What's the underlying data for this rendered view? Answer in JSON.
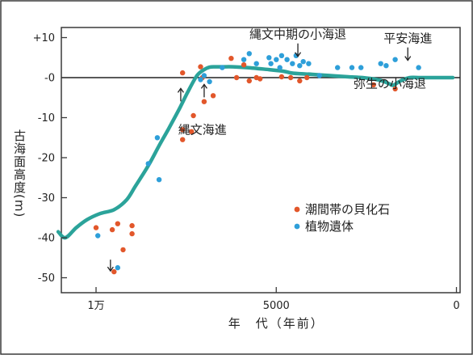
{
  "chart_data": {
    "type": "scatter",
    "title": "",
    "xlabel": "年　代（年前）",
    "ylabel": "古海面高度(m)",
    "xlim": [
      11500,
      0
    ],
    "ylim": [
      -55,
      14
    ],
    "xticks": [
      {
        "value": 10000,
        "label": "1万"
      },
      {
        "value": 5000,
        "label": "5000"
      },
      {
        "value": 0,
        "label": "0"
      }
    ],
    "yticks": [
      {
        "value": 10,
        "label": "+10"
      },
      {
        "value": 0,
        "label": "-0"
      },
      {
        "value": -10,
        "label": "-10"
      },
      {
        "value": -20,
        "label": "-20"
      },
      {
        "value": -30,
        "label": "-30"
      },
      {
        "value": -40,
        "label": "-40"
      },
      {
        "value": -50,
        "label": "-50"
      }
    ],
    "reference_line": {
      "y": 0
    },
    "colors": {
      "curve": "#2ba39a",
      "shell": "#e2572b",
      "plant": "#2e9fd9",
      "frame": "#3a3a3a",
      "zero_line": "#222222"
    },
    "curve": {
      "x": [
        11050,
        10850,
        10550,
        10250,
        9900,
        9500,
        9150,
        8900,
        8550,
        8250,
        8000,
        7700,
        7450,
        7200,
        7000,
        6850,
        6700,
        6500,
        6200,
        5800,
        5200,
        4800,
        4600,
        4400,
        4000,
        3500,
        3000,
        2600,
        2200,
        2000,
        1850,
        1750,
        1550,
        1300,
        1000,
        600,
        100
      ],
      "y": [
        -38.5,
        -40,
        -37.5,
        -35.5,
        -34,
        -33,
        -30.5,
        -27,
        -22,
        -17,
        -13,
        -8,
        -3.5,
        0.5,
        2,
        2.6,
        2.7,
        2.7,
        2.7,
        2.5,
        2,
        1.6,
        1.2,
        1,
        0.8,
        0.5,
        0.2,
        0,
        -0.5,
        -1,
        -1.6,
        -1.9,
        -0.8,
        0,
        0,
        0,
        0
      ]
    },
    "series": [
      {
        "name": "潮間帯の貝化石",
        "marker": "shell",
        "points": [
          [
            10000,
            -37.5
          ],
          [
            9550,
            -38
          ],
          [
            9400,
            -36.5
          ],
          [
            9250,
            -43
          ],
          [
            9000,
            -37
          ],
          [
            9000,
            -39
          ],
          [
            9500,
            -48.5
          ],
          [
            7600,
            1.2
          ],
          [
            7600,
            -13
          ],
          [
            7600,
            -15.5
          ],
          [
            7350,
            -13.5
          ],
          [
            7300,
            -9.5
          ],
          [
            7100,
            2.7
          ],
          [
            7050,
            0
          ],
          [
            7000,
            -6
          ],
          [
            6750,
            -4.5
          ],
          [
            6250,
            4.8
          ],
          [
            6100,
            0
          ],
          [
            5900,
            3.2
          ],
          [
            5750,
            -0.8
          ],
          [
            5550,
            0
          ],
          [
            5450,
            -0.3
          ],
          [
            4850,
            0.2
          ],
          [
            4600,
            0
          ],
          [
            4350,
            -0.8
          ],
          [
            4150,
            0
          ],
          [
            2300,
            -1.8
          ],
          [
            1700,
            -2.8
          ]
        ]
      },
      {
        "name": "植物遺体",
        "marker": "plant",
        "points": [
          [
            9950,
            -39.5
          ],
          [
            9400,
            -47.5
          ],
          [
            8550,
            -21.5
          ],
          [
            8300,
            -15
          ],
          [
            8250,
            -25.5
          ],
          [
            7100,
            -0.5
          ],
          [
            7000,
            0.5
          ],
          [
            6850,
            -1
          ],
          [
            6500,
            2.5
          ],
          [
            5900,
            4.5
          ],
          [
            5750,
            6
          ],
          [
            5550,
            3.5
          ],
          [
            5200,
            5
          ],
          [
            5150,
            3.5
          ],
          [
            5000,
            4.5
          ],
          [
            4900,
            2.5
          ],
          [
            4850,
            5.5
          ],
          [
            4700,
            4.5
          ],
          [
            4550,
            3.5
          ],
          [
            4450,
            5.5
          ],
          [
            4350,
            3
          ],
          [
            4250,
            4
          ],
          [
            4100,
            3.5
          ],
          [
            3800,
            0.5
          ],
          [
            3300,
            2.5
          ],
          [
            2900,
            2.5
          ],
          [
            2650,
            2.5
          ],
          [
            2100,
            3.5
          ],
          [
            1950,
            3
          ],
          [
            1700,
            4.5
          ],
          [
            1050,
            2.5
          ]
        ]
      }
    ],
    "annotations": [
      {
        "text": "縄文中期の小海退",
        "x": 4400,
        "y": 4.5,
        "arrow": true
      },
      {
        "text": "平安海進",
        "x": 1350,
        "y": 3.5,
        "arrow": true
      },
      {
        "text": "弥生の小海退",
        "x": 1850,
        "y": -2.5,
        "arrow": false
      },
      {
        "text": "縄文海進",
        "x": 7050,
        "y": -14,
        "arrow": false
      },
      {
        "text": "",
        "x": 7650,
        "y": -3.5,
        "arrow": true,
        "direction": "up"
      },
      {
        "text": "",
        "x": 7000,
        "y": -2.5,
        "arrow": true,
        "direction": "up"
      },
      {
        "text": "",
        "x": 9600,
        "y": -47.5,
        "arrow": true,
        "direction": "down"
      }
    ],
    "legend": {
      "placement": "lower-right",
      "entries": [
        {
          "label": "潮間帯の貝化石",
          "marker": "shell"
        },
        {
          "label": "植物遺体",
          "marker": "plant"
        }
      ]
    },
    "grid": false
  }
}
